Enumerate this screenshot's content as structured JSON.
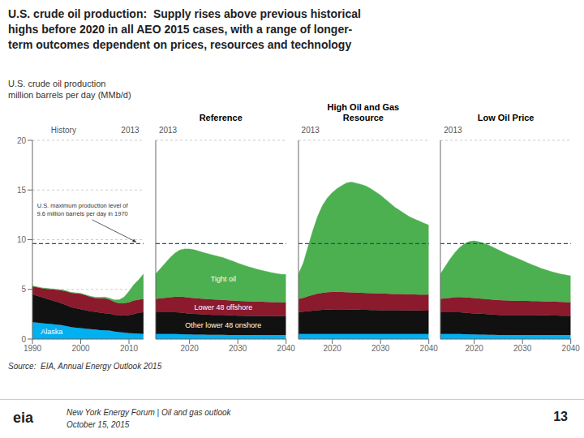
{
  "title": "U.S. crude oil production:  Supply rises above previous historical\nhighs before 2020 in all AEO 2015 cases, with a range of longer-\nterm outcomes dependent on prices, resources and technology",
  "subtitle": [
    "U.S. crude oil production",
    "million barrels per day (MMb/d)"
  ],
  "annotations": [
    "Source:  EIA, Annual Energy Outlook 2015",
    "New York Energy Forum | Oil and gas outlook",
    "October 15, 2015",
    "eia",
    "13"
  ],
  "chart_data": [
    {
      "type": "area",
      "stacked": true,
      "title": "History",
      "annotations": [
        "2013"
      ],
      "x": [
        1990,
        1991,
        1992,
        1993,
        1994,
        1995,
        1996,
        1997,
        1998,
        1999,
        2000,
        2001,
        2002,
        2003,
        2004,
        2005,
        2006,
        2007,
        2008,
        2009,
        2010,
        2011,
        2012,
        2013
      ],
      "xlim": [
        1990,
        2013
      ],
      "xticks": [
        1990,
        2000,
        2010
      ],
      "ylim": [
        0,
        20
      ],
      "yticks": [
        0,
        5,
        10,
        15,
        20
      ],
      "grid": true,
      "series": [
        {
          "name": "Alaska",
          "color": "#00B0F0",
          "values": [
            1.7,
            1.65,
            1.6,
            1.55,
            1.5,
            1.45,
            1.4,
            1.3,
            1.2,
            1.15,
            1.1,
            1.05,
            1.0,
            0.95,
            0.9,
            0.88,
            0.85,
            0.75,
            0.7,
            0.65,
            0.6,
            0.57,
            0.55,
            0.5
          ]
        },
        {
          "name": "Other lower 48 onshore",
          "color": "#111111",
          "values": [
            2.8,
            2.7,
            2.6,
            2.5,
            2.4,
            2.3,
            2.2,
            2.1,
            2.0,
            1.95,
            1.9,
            1.85,
            1.8,
            1.78,
            1.75,
            1.72,
            1.7,
            1.68,
            1.7,
            1.72,
            1.8,
            1.95,
            2.1,
            2.2
          ]
        },
        {
          "name": "Lower 48 offshore",
          "color": "#8B1A2C",
          "values": [
            0.8,
            0.85,
            0.9,
            1.0,
            1.1,
            1.2,
            1.3,
            1.4,
            1.45,
            1.5,
            1.55,
            1.5,
            1.45,
            1.4,
            1.45,
            1.5,
            1.4,
            1.3,
            1.2,
            1.25,
            1.3,
            1.35,
            1.3,
            1.35
          ]
        },
        {
          "name": "Tight oil",
          "color": "#4CAF50",
          "values": [
            0.05,
            0.05,
            0.05,
            0.05,
            0.05,
            0.05,
            0.05,
            0.05,
            0.05,
            0.05,
            0.05,
            0.05,
            0.05,
            0.08,
            0.1,
            0.12,
            0.15,
            0.2,
            0.35,
            0.6,
            1.1,
            1.6,
            2.0,
            2.5
          ]
        }
      ],
      "ref_line": {
        "y": 9.6,
        "color": "#1A5276",
        "label": [
          "U.S. maximum production level of",
          "9.6 million barrels per day in 1970"
        ]
      }
    },
    {
      "type": "area",
      "stacked": true,
      "title": "Reference",
      "annotations": [
        "2013"
      ],
      "x": [
        2013,
        2014,
        2015,
        2016,
        2017,
        2018,
        2019,
        2020,
        2021,
        2022,
        2023,
        2024,
        2025,
        2026,
        2027,
        2028,
        2029,
        2030,
        2031,
        2032,
        2033,
        2034,
        2035,
        2036,
        2037,
        2038,
        2039,
        2040
      ],
      "xlim": [
        2013,
        2040
      ],
      "xticks": [
        2020,
        2030,
        2040
      ],
      "ylim": [
        0,
        20
      ],
      "yticks": [
        0,
        5,
        10,
        15,
        20
      ],
      "grid": true,
      "tick_labels": "x",
      "series": [
        {
          "name": "Alaska",
          "color": "#00B0F0",
          "values": [
            0.5,
            0.5,
            0.5,
            0.5,
            0.5,
            0.48,
            0.47,
            0.46,
            0.45,
            0.45,
            0.44,
            0.43,
            0.43,
            0.42,
            0.42,
            0.41,
            0.41,
            0.4,
            0.4,
            0.4,
            0.4,
            0.4,
            0.4,
            0.4,
            0.4,
            0.4,
            0.4,
            0.4
          ]
        },
        {
          "name": "Other lower 48 onshore",
          "color": "#111111",
          "values": [
            2.2,
            2.2,
            2.2,
            2.2,
            2.2,
            2.2,
            2.15,
            2.1,
            2.08,
            2.05,
            2.03,
            2.02,
            2.0,
            2.0,
            2.0,
            1.98,
            1.97,
            1.95,
            1.94,
            1.93,
            1.92,
            1.92,
            1.91,
            1.91,
            1.9,
            1.9,
            1.9,
            1.9
          ]
        },
        {
          "name": "Lower 48 offshore",
          "color": "#8B1A2C",
          "values": [
            1.35,
            1.4,
            1.45,
            1.5,
            1.55,
            1.58,
            1.6,
            1.6,
            1.6,
            1.58,
            1.57,
            1.56,
            1.55,
            1.54,
            1.52,
            1.51,
            1.5,
            1.49,
            1.48,
            1.47,
            1.46,
            1.45,
            1.44,
            1.43,
            1.42,
            1.41,
            1.4,
            1.4
          ]
        },
        {
          "name": "Tight oil",
          "color": "#4CAF50",
          "values": [
            2.5,
            3.0,
            3.5,
            4.0,
            4.4,
            4.7,
            4.85,
            4.9,
            4.85,
            4.75,
            4.65,
            4.55,
            4.45,
            4.35,
            4.25,
            4.1,
            3.95,
            3.8,
            3.65,
            3.5,
            3.38,
            3.26,
            3.15,
            3.05,
            2.96,
            2.88,
            2.82,
            2.8
          ]
        }
      ],
      "ref_line": {
        "y": 9.6,
        "color": "#1A5276"
      }
    },
    {
      "type": "area",
      "stacked": true,
      "title": "High Oil and Gas\nResource",
      "annotations": [
        "2013"
      ],
      "x": [
        2013,
        2014,
        2015,
        2016,
        2017,
        2018,
        2019,
        2020,
        2021,
        2022,
        2023,
        2024,
        2025,
        2026,
        2027,
        2028,
        2029,
        2030,
        2031,
        2032,
        2033,
        2034,
        2035,
        2036,
        2037,
        2038,
        2039,
        2040
      ],
      "xlim": [
        2013,
        2040
      ],
      "xticks": [
        2020,
        2030,
        2040
      ],
      "ylim": [
        0,
        20
      ],
      "yticks": [
        0,
        5,
        10,
        15,
        20
      ],
      "grid": true,
      "tick_labels": "x",
      "series": [
        {
          "name": "Alaska",
          "color": "#00B0F0",
          "values": [
            0.5,
            0.5,
            0.5,
            0.5,
            0.5,
            0.5,
            0.5,
            0.5,
            0.5,
            0.5,
            0.5,
            0.5,
            0.5,
            0.5,
            0.5,
            0.5,
            0.5,
            0.5,
            0.5,
            0.5,
            0.5,
            0.5,
            0.5,
            0.5,
            0.5,
            0.5,
            0.5,
            0.5
          ]
        },
        {
          "name": "Other lower 48 onshore",
          "color": "#111111",
          "values": [
            2.2,
            2.25,
            2.3,
            2.35,
            2.4,
            2.43,
            2.45,
            2.47,
            2.48,
            2.48,
            2.47,
            2.46,
            2.45,
            2.44,
            2.43,
            2.42,
            2.41,
            2.4,
            2.4,
            2.4,
            2.39,
            2.39,
            2.38,
            2.38,
            2.37,
            2.37,
            2.36,
            2.36
          ]
        },
        {
          "name": "Lower 48 offshore",
          "color": "#8B1A2C",
          "values": [
            1.35,
            1.4,
            1.5,
            1.6,
            1.68,
            1.73,
            1.76,
            1.77,
            1.77,
            1.76,
            1.75,
            1.74,
            1.73,
            1.72,
            1.71,
            1.7,
            1.69,
            1.68,
            1.67,
            1.66,
            1.65,
            1.64,
            1.63,
            1.62,
            1.61,
            1.6,
            1.6,
            1.6
          ]
        },
        {
          "name": "Tight oil",
          "color": "#4CAF50",
          "values": [
            2.5,
            3.5,
            5.0,
            6.5,
            7.8,
            8.8,
            9.5,
            10.0,
            10.4,
            10.7,
            11.0,
            11.1,
            11.0,
            10.9,
            10.75,
            10.5,
            10.2,
            9.9,
            9.5,
            9.1,
            8.7,
            8.4,
            8.1,
            7.8,
            7.6,
            7.4,
            7.2,
            7.0
          ]
        }
      ],
      "ref_line": {
        "y": 9.6,
        "color": "#1A5276"
      }
    },
    {
      "type": "area",
      "stacked": true,
      "title": "Low Oil Price",
      "annotations": [
        "2013"
      ],
      "x": [
        2013,
        2014,
        2015,
        2016,
        2017,
        2018,
        2019,
        2020,
        2021,
        2022,
        2023,
        2024,
        2025,
        2026,
        2027,
        2028,
        2029,
        2030,
        2031,
        2032,
        2033,
        2034,
        2035,
        2036,
        2037,
        2038,
        2039,
        2040
      ],
      "xlim": [
        2013,
        2040
      ],
      "xticks": [
        2020,
        2030,
        2040
      ],
      "ylim": [
        0,
        20
      ],
      "yticks": [
        0,
        5,
        10,
        15,
        20
      ],
      "grid": true,
      "tick_labels": "x",
      "series": [
        {
          "name": "Alaska",
          "color": "#00B0F0",
          "values": [
            0.5,
            0.5,
            0.5,
            0.5,
            0.5,
            0.48,
            0.47,
            0.46,
            0.45,
            0.44,
            0.43,
            0.42,
            0.41,
            0.4,
            0.4,
            0.4,
            0.4,
            0.4,
            0.4,
            0.4,
            0.4,
            0.4,
            0.4,
            0.4,
            0.4,
            0.4,
            0.4,
            0.4
          ]
        },
        {
          "name": "Other lower 48 onshore",
          "color": "#111111",
          "values": [
            2.2,
            2.2,
            2.2,
            2.2,
            2.2,
            2.18,
            2.15,
            2.12,
            2.1,
            2.08,
            2.06,
            2.04,
            2.02,
            2.01,
            2.0,
            2.0,
            2.0,
            2.0,
            2.0,
            2.0,
            2.0,
            1.99,
            1.98,
            1.97,
            1.96,
            1.95,
            1.94,
            1.93
          ]
        },
        {
          "name": "Lower 48 offshore",
          "color": "#8B1A2C",
          "values": [
            1.35,
            1.4,
            1.45,
            1.5,
            1.52,
            1.53,
            1.54,
            1.54,
            1.53,
            1.52,
            1.51,
            1.5,
            1.49,
            1.48,
            1.47,
            1.46,
            1.45,
            1.44,
            1.43,
            1.42,
            1.41,
            1.4,
            1.4,
            1.39,
            1.39,
            1.38,
            1.38,
            1.37
          ]
        },
        {
          "name": "Tight oil",
          "color": "#4CAF50",
          "values": [
            2.5,
            3.2,
            3.9,
            4.5,
            5.0,
            5.4,
            5.65,
            5.75,
            5.7,
            5.6,
            5.45,
            5.25,
            5.05,
            4.85,
            4.65,
            4.45,
            4.25,
            4.05,
            3.85,
            3.65,
            3.47,
            3.3,
            3.15,
            3.02,
            2.9,
            2.8,
            2.72,
            2.65
          ]
        }
      ],
      "ref_line": {
        "y": 9.6,
        "color": "#1A5276"
      }
    }
  ]
}
